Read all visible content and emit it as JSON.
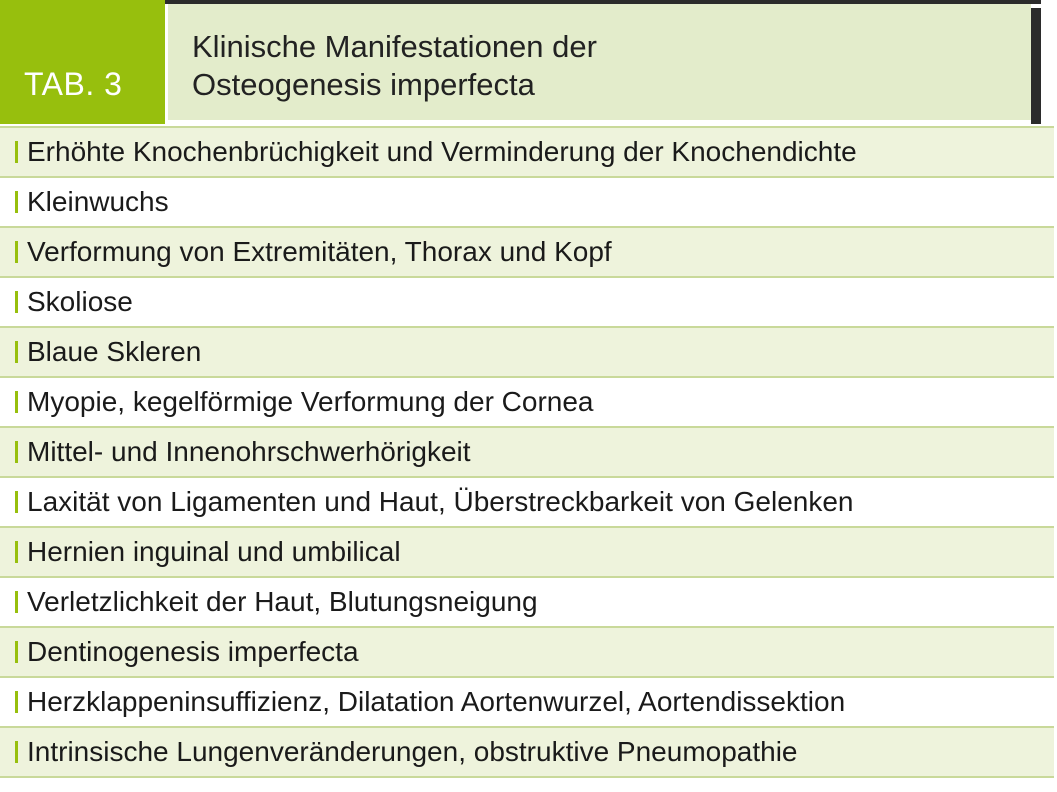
{
  "header": {
    "tab_label": "TAB. 3",
    "title_line1": "Klinische Manifestationen der",
    "title_line2": "Osteogenesis imperfecta"
  },
  "rows": [
    "Erhöhte Knochenbrüchigkeit und Verminderung der Knochendichte",
    "Kleinwuchs",
    "Verformung von Extremitäten, Thorax und Kopf",
    "Skoliose",
    "Blaue Skleren",
    "Myopie, kegelförmige Verformung der Cornea",
    "Mittel- und Innenohrschwerhörigkeit",
    "Laxität von Ligamenten und Haut, Überstreckbarkeit von Gelenken",
    "Hernien inguinal und umbilical",
    "Verletzlichkeit der Haut, Blutungsneigung",
    "Dentinogenesis imperfecta",
    "Herzklappeninsuffizienz, Dilatation Aortenwurzel, Aortendissektion",
    "Intrinsische Lungenveränderungen, obstruktive Pneumopathie"
  ],
  "colors": {
    "accent_green": "#97bf0d",
    "title_bg": "#e3eccb",
    "row_alt_bg": "#eef3dc",
    "row_border": "#c9d99a"
  }
}
